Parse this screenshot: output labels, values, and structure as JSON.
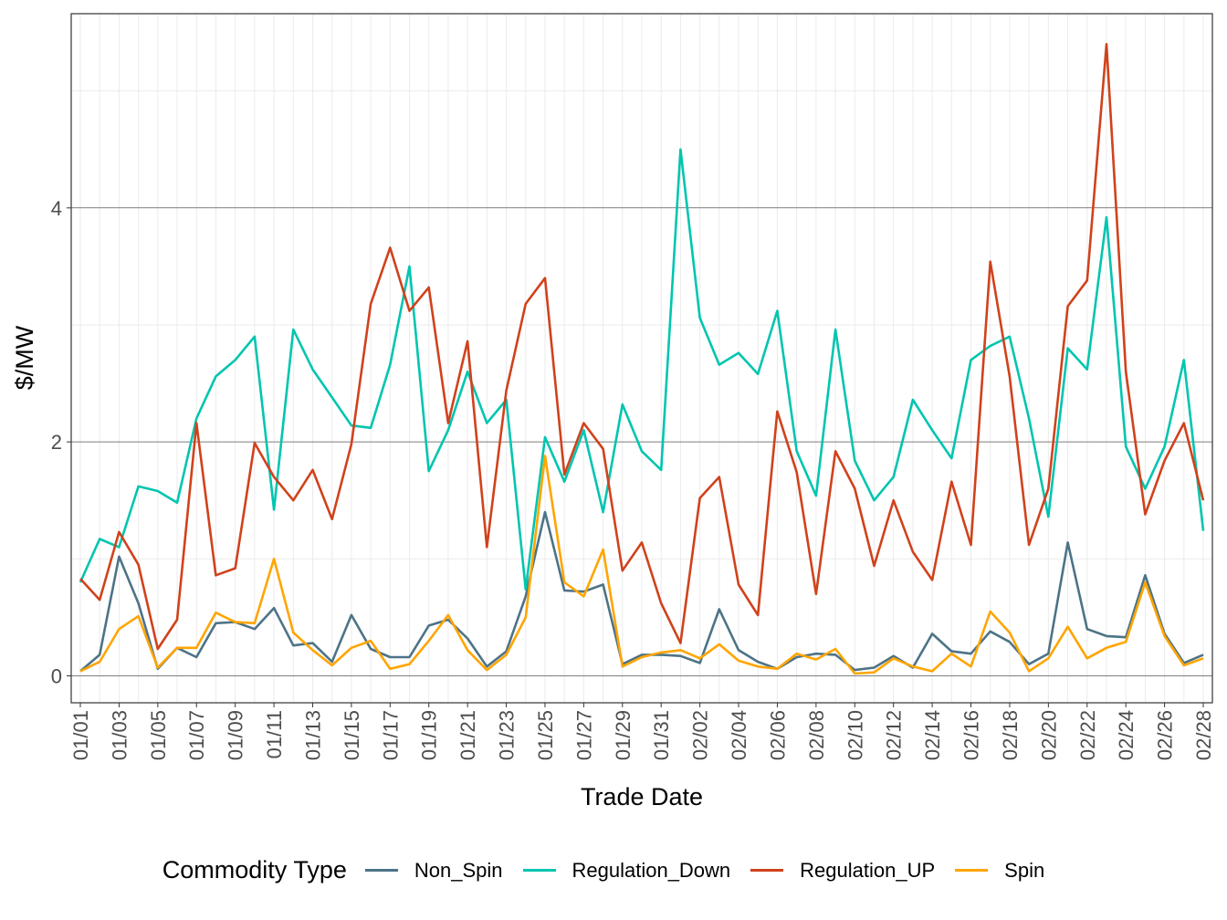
{
  "chart_data": {
    "type": "line",
    "xlabel": "Trade Date",
    "ylabel": "$/MW",
    "ylim": [
      -0.23,
      5.66
    ],
    "y_ticks": [
      "0",
      "2",
      "4"
    ],
    "grid": true,
    "legend_position": "bottom",
    "legend_title": "Commodity Type",
    "x": [
      "01/01",
      "01/02",
      "01/03",
      "01/04",
      "01/05",
      "01/06",
      "01/07",
      "01/08",
      "01/09",
      "01/10",
      "01/11",
      "01/12",
      "01/13",
      "01/14",
      "01/15",
      "01/16",
      "01/17",
      "01/18",
      "01/19",
      "01/20",
      "01/21",
      "01/22",
      "01/23",
      "01/24",
      "01/25",
      "01/26",
      "01/27",
      "01/28",
      "01/29",
      "01/30",
      "01/31",
      "02/01",
      "02/02",
      "02/03",
      "02/04",
      "02/05",
      "02/06",
      "02/07",
      "02/08",
      "02/09",
      "02/10",
      "02/11",
      "02/12",
      "02/13",
      "02/14",
      "02/15",
      "02/16",
      "02/17",
      "02/18",
      "02/19",
      "02/20",
      "02/21",
      "02/22",
      "02/23",
      "02/24",
      "02/25",
      "02/26",
      "02/27",
      "02/28"
    ],
    "series": [
      {
        "name": "Non_Spin",
        "color": "#4d7387",
        "values": [
          0.04,
          0.18,
          1.02,
          0.62,
          0.06,
          0.24,
          0.16,
          0.45,
          0.46,
          0.4,
          0.58,
          0.26,
          0.28,
          0.12,
          0.52,
          0.23,
          0.16,
          0.16,
          0.43,
          0.48,
          0.32,
          0.08,
          0.21,
          0.68,
          1.4,
          0.73,
          0.72,
          0.78,
          0.1,
          0.18,
          0.18,
          0.17,
          0.11,
          0.57,
          0.22,
          0.12,
          0.06,
          0.16,
          0.19,
          0.18,
          0.05,
          0.07,
          0.17,
          0.07,
          0.36,
          0.21,
          0.19,
          0.38,
          0.29,
          0.1,
          0.19,
          1.14,
          0.4,
          0.34,
          0.33,
          0.86,
          0.36,
          0.11,
          0.18
        ]
      },
      {
        "name": "Regulation_Down",
        "color": "#00c5b0",
        "values": [
          0.8,
          1.17,
          1.1,
          1.62,
          1.58,
          1.48,
          2.2,
          2.56,
          2.7,
          2.9,
          1.42,
          2.96,
          2.62,
          2.38,
          2.14,
          2.12,
          2.66,
          3.5,
          1.75,
          2.1,
          2.6,
          2.16,
          2.36,
          0.74,
          2.04,
          1.66,
          2.1,
          1.4,
          2.32,
          1.92,
          1.76,
          4.5,
          3.06,
          2.66,
          2.76,
          2.58,
          3.12,
          1.92,
          1.54,
          2.96,
          1.84,
          1.5,
          1.7,
          2.36,
          2.1,
          1.86,
          2.7,
          2.82,
          2.9,
          2.2,
          1.36,
          2.8,
          2.62,
          3.92,
          1.96,
          1.6,
          1.96,
          2.7,
          1.24
        ]
      },
      {
        "name": "Regulation_UP",
        "color": "#d0421c",
        "values": [
          0.83,
          0.65,
          1.23,
          0.95,
          0.23,
          0.48,
          2.16,
          0.86,
          0.92,
          1.99,
          1.7,
          1.5,
          1.76,
          1.34,
          1.98,
          3.18,
          3.66,
          3.12,
          3.32,
          2.16,
          2.86,
          1.1,
          2.44,
          3.18,
          3.4,
          1.72,
          2.16,
          1.94,
          0.9,
          1.14,
          0.62,
          0.28,
          1.52,
          1.7,
          0.78,
          0.52,
          2.26,
          1.74,
          0.7,
          1.92,
          1.6,
          0.94,
          1.5,
          1.06,
          0.82,
          1.66,
          1.12,
          3.54,
          2.56,
          1.12,
          1.6,
          3.16,
          3.38,
          5.4,
          2.6,
          1.38,
          1.84,
          2.16,
          1.5
        ]
      },
      {
        "name": "Spin",
        "color": "#ffa500",
        "values": [
          0.04,
          0.12,
          0.4,
          0.51,
          0.07,
          0.24,
          0.24,
          0.54,
          0.46,
          0.45,
          1.0,
          0.37,
          0.22,
          0.09,
          0.24,
          0.3,
          0.06,
          0.1,
          0.3,
          0.52,
          0.22,
          0.05,
          0.18,
          0.5,
          1.88,
          0.8,
          0.68,
          1.08,
          0.08,
          0.16,
          0.2,
          0.22,
          0.15,
          0.27,
          0.13,
          0.08,
          0.06,
          0.19,
          0.14,
          0.23,
          0.02,
          0.03,
          0.15,
          0.08,
          0.04,
          0.19,
          0.08,
          0.55,
          0.37,
          0.04,
          0.15,
          0.42,
          0.15,
          0.24,
          0.29,
          0.8,
          0.34,
          0.09,
          0.15
        ]
      }
    ]
  }
}
